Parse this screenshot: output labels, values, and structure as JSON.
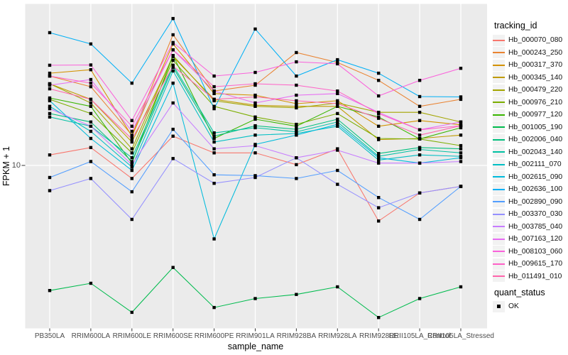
{
  "chart_data": {
    "type": "line",
    "title": "",
    "xlabel": "sample_name",
    "ylabel": "FPKM + 1",
    "y_scale": "log10",
    "y_tick_labels": [
      "10"
    ],
    "ylim": [
      1.3,
      75
    ],
    "grid": true,
    "panel_bg": "#EBEBEB",
    "grid_color": "#FFFFFF",
    "point_color": "#000000",
    "point_shape": "square",
    "categories": [
      "PB350LA",
      "RRIM600LA",
      "RRIM600LE",
      "RRIM600SE",
      "RRIM600PE",
      "RRIM901LA",
      "RRIM928BA",
      "RRIM928LA",
      "RRIM928LE",
      "RRII105LA_Control",
      "RRII105LA_Stressed"
    ],
    "series": [
      {
        "name": "Hb_000070_080",
        "color": "#F8766D",
        "values": [
          11.4,
          12.5,
          8.5,
          14.4,
          11.7,
          11.7,
          10.1,
          12.3,
          5.0,
          7.1,
          7.7
        ]
      },
      {
        "name": "Hb_000243_250",
        "color": "#EA8331",
        "values": [
          30.5,
          26.7,
          14.6,
          51.0,
          25.3,
          27.2,
          40.9,
          36.1,
          28.9,
          20.9,
          22.8
        ]
      },
      {
        "name": "Hb_000317_370",
        "color": "#D39200",
        "values": [
          31.6,
          33.0,
          14.4,
          45.5,
          24.5,
          24.0,
          21.6,
          22.4,
          16.3,
          17.5,
          16.6
        ]
      },
      {
        "name": "Hb_000345_140",
        "color": "#C09B00",
        "values": [
          27.7,
          22.8,
          13.4,
          38.8,
          22.8,
          21.2,
          20.9,
          20.9,
          13.8,
          14.0,
          14.6
        ]
      },
      {
        "name": "Hb_000479_220",
        "color": "#A3A500",
        "values": [
          27.7,
          21.8,
          12.3,
          39.4,
          22.4,
          20.9,
          20.5,
          21.8,
          19.4,
          19.4,
          17.2
        ]
      },
      {
        "name": "Hb_000976_210",
        "color": "#7CAE00",
        "values": [
          22.8,
          19.1,
          11.7,
          37.1,
          20.9,
          18.3,
          16.7,
          19.1,
          14.0,
          13.9,
          12.8
        ]
      },
      {
        "name": "Hb_000977_120",
        "color": "#39B600",
        "values": [
          23.2,
          20.9,
          10.3,
          39.4,
          14.0,
          17.8,
          16.3,
          20.9,
          18.3,
          13.9,
          16.0
        ]
      },
      {
        "name": "Hb_001005_190",
        "color": "#00BB4E",
        "values": [
          2.1,
          2.3,
          1.6,
          2.8,
          1.7,
          1.9,
          2.0,
          2.2,
          1.5,
          1.9,
          2.2
        ]
      },
      {
        "name": "Hb_002006_040",
        "color": "#00BF7D",
        "values": [
          19.1,
          17.2,
          10.5,
          34.0,
          14.4,
          16.4,
          15.7,
          17.8,
          11.6,
          12.5,
          12.3
        ]
      },
      {
        "name": "Hb_002043_140",
        "color": "#00C1A3",
        "values": [
          18.3,
          16.3,
          11.0,
          34.9,
          15.0,
          16.0,
          15.2,
          17.2,
          11.2,
          12.2,
          11.7
        ]
      },
      {
        "name": "Hb_002111_070",
        "color": "#00BFC4",
        "values": [
          20.9,
          15.3,
          9.8,
          32.5,
          13.4,
          14.6,
          14.9,
          16.3,
          10.7,
          11.4,
          11.2
        ]
      },
      {
        "name": "Hb_002615_090",
        "color": "#00BBDC",
        "values": [
          22.4,
          14.0,
          9.4,
          27.9,
          4.0,
          13.0,
          14.6,
          16.7,
          11.0,
          10.3,
          11.0
        ]
      },
      {
        "name": "Hb_002636_100",
        "color": "#00B0F6",
        "values": [
          52.4,
          45.5,
          27.9,
          62.5,
          20.3,
          54.8,
          30.5,
          37.4,
          31.6,
          23.6,
          23.5
        ]
      },
      {
        "name": "Hb_002890_090",
        "color": "#529EFF",
        "values": [
          8.6,
          10.5,
          7.2,
          15.7,
          8.9,
          8.8,
          8.5,
          9.4,
          6.7,
          5.1,
          7.7
        ]
      },
      {
        "name": "Hb_003370_030",
        "color": "#9590FF",
        "values": [
          7.3,
          8.5,
          5.1,
          10.9,
          8.0,
          8.6,
          11.0,
          7.9,
          5.9,
          7.1,
          7.7
        ]
      },
      {
        "name": "Hb_003785_040",
        "color": "#C77CFF",
        "values": [
          20.3,
          16.3,
          10.1,
          21.8,
          12.3,
          12.8,
          11.0,
          12.1,
          10.3,
          10.3,
          10.5
        ]
      },
      {
        "name": "Hb_007163_120",
        "color": "#E76BF3",
        "values": [
          27.2,
          29.2,
          15.3,
          42.3,
          25.3,
          21.8,
          24.0,
          24.5,
          19.4,
          15.6,
          17.2
        ]
      },
      {
        "name": "Hb_008103_060",
        "color": "#FA62DB",
        "values": [
          34.9,
          35.0,
          17.5,
          46.3,
          30.5,
          31.9,
          36.4,
          35.5,
          23.8,
          28.9,
          33.6
        ]
      },
      {
        "name": "Hb_009615_170",
        "color": "#FF61C7",
        "values": [
          30.5,
          27.9,
          16.3,
          42.3,
          26.7,
          27.7,
          27.2,
          25.3,
          19.1,
          15.6,
          16.4
        ]
      },
      {
        "name": "Hb_011491_010",
        "color": "#FF65AC",
        "values": [
          26.0,
          22.8,
          13.9,
          34.5,
          22.8,
          23.5,
          22.4,
          21.6,
          18.0,
          14.6,
          16.4
        ]
      }
    ],
    "legend": {
      "position": "right",
      "tracking_id_title": "tracking_id",
      "quant_status_title": "quant_status",
      "quant_status_items": [
        {
          "label": "OK",
          "marker": "black-square"
        }
      ]
    }
  }
}
